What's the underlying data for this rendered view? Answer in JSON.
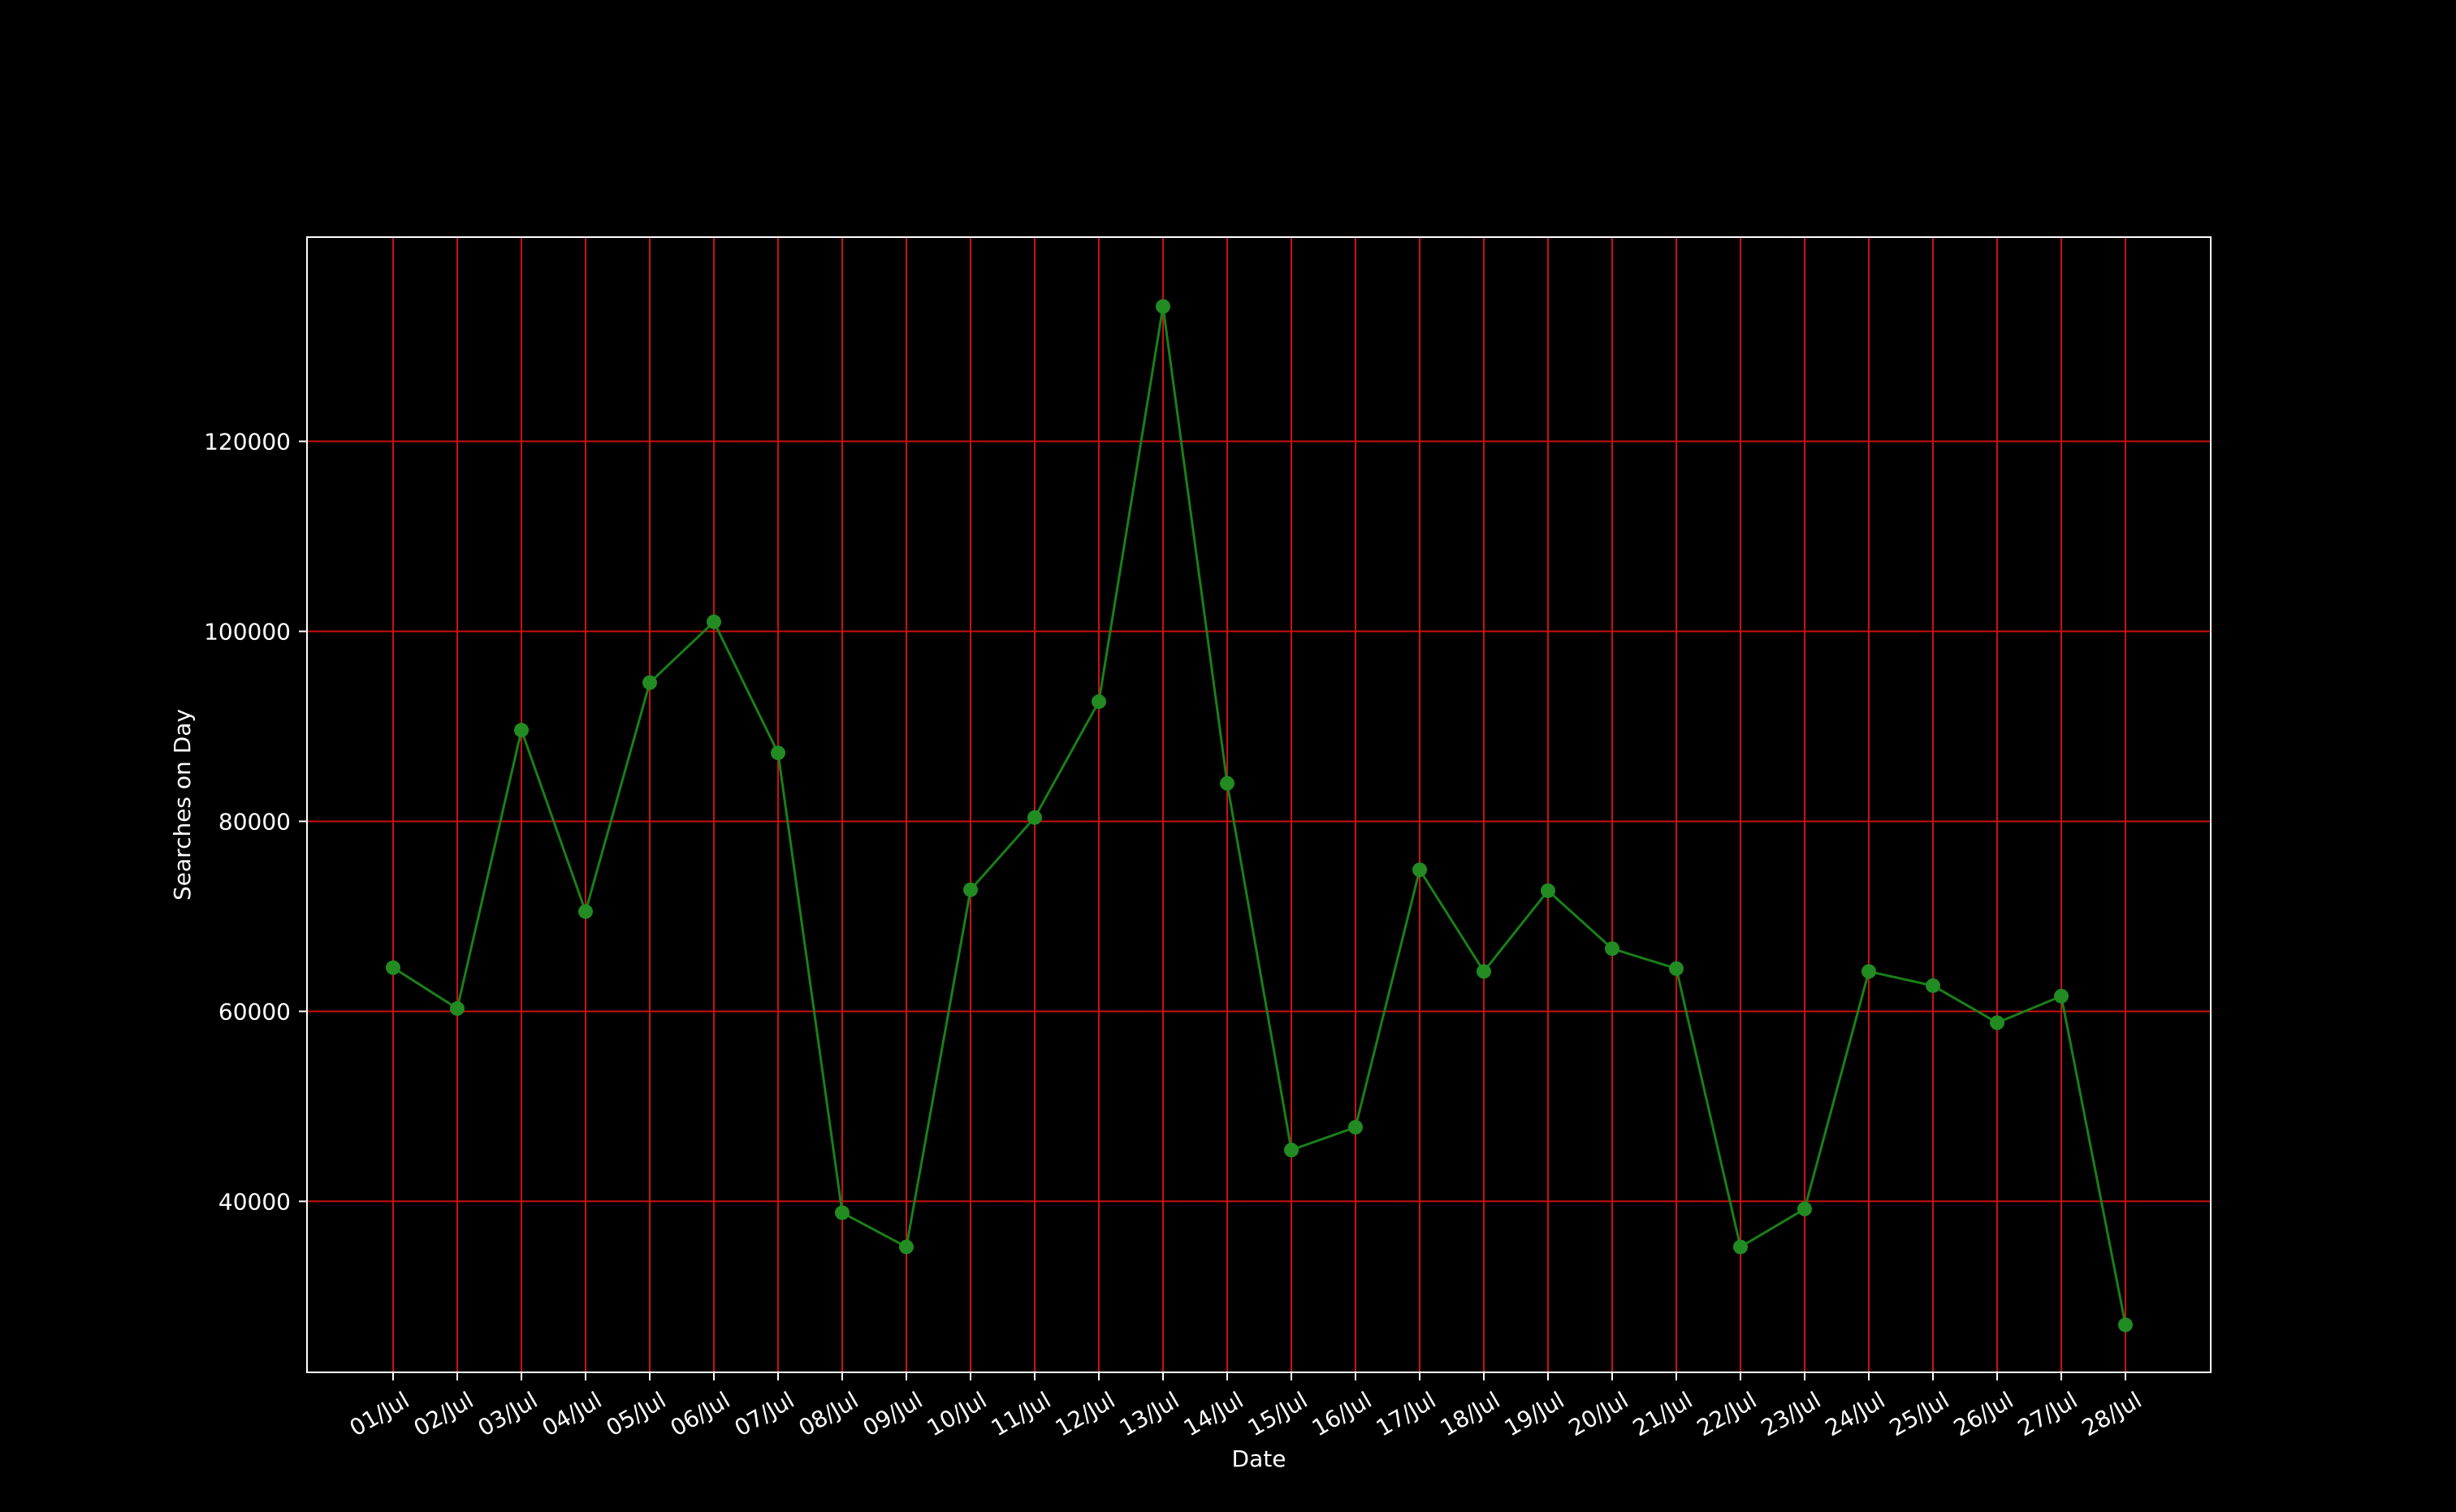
{
  "chart_data": {
    "type": "line",
    "title": "",
    "xlabel": "Date",
    "ylabel": "Searches on Day",
    "categories": [
      "01/Jul",
      "02/Jul",
      "03/Jul",
      "04/Jul",
      "05/Jul",
      "06/Jul",
      "07/Jul",
      "08/Jul",
      "09/Jul",
      "10/Jul",
      "11/Jul",
      "12/Jul",
      "13/Jul",
      "14/Jul",
      "15/Jul",
      "16/Jul",
      "17/Jul",
      "18/Jul",
      "19/Jul",
      "20/Jul",
      "21/Jul",
      "22/Jul",
      "23/Jul",
      "24/Jul",
      "25/Jul",
      "26/Jul",
      "27/Jul",
      "28/Jul"
    ],
    "values": [
      64600,
      60300,
      89600,
      70500,
      94600,
      101000,
      87200,
      38800,
      35200,
      72800,
      80400,
      92600,
      134200,
      84000,
      45400,
      47800,
      74900,
      64200,
      72700,
      66600,
      64500,
      35200,
      39200,
      64200,
      62700,
      58800,
      61600,
      27000
    ],
    "ylim": [
      22000,
      141500
    ],
    "yticks": [
      40000,
      60000,
      80000,
      100000,
      120000
    ],
    "grid": true,
    "legend": "none",
    "colors": {
      "background": "#000000",
      "line": "#1a7f1a",
      "marker": "#228b22",
      "grid": "#cc1111",
      "frame": "#ffffff",
      "text": "#ffffff"
    }
  }
}
